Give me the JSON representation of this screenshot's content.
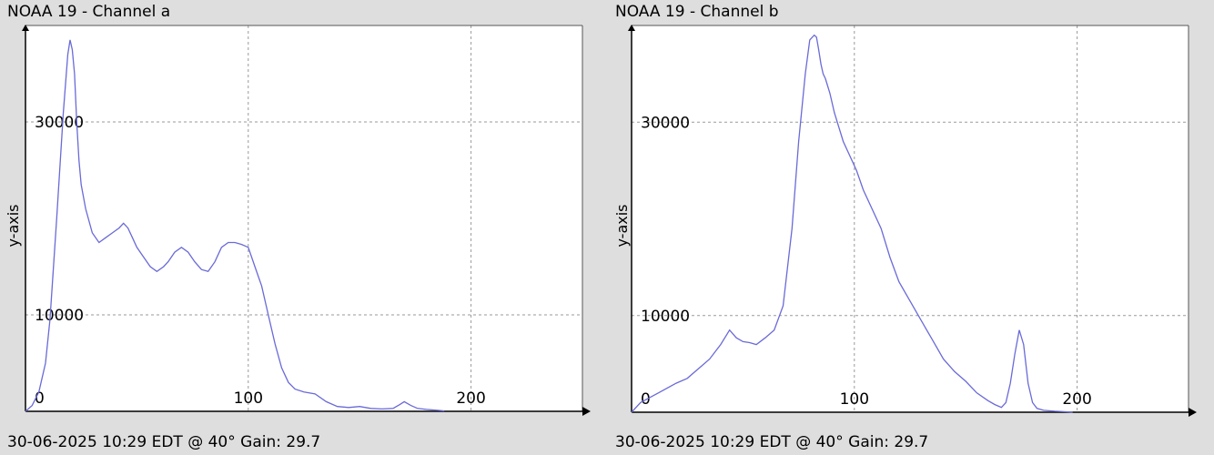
{
  "charts": [
    {
      "title": "NOAA 19 - Channel a",
      "footer": "30-06-2025 10:29 EDT @ 40° Gain: 29.7",
      "ylabel": "y-axis"
    },
    {
      "title": "NOAA 19 - Channel b",
      "footer": "30-06-2025 10:29 EDT @ 40° Gain: 29.7",
      "ylabel": "y-axis"
    }
  ],
  "colors": {
    "line": "#6a6ad8",
    "grid": "#9a9a9a",
    "background": "#ffffff",
    "axis": "#000000"
  },
  "chart_data": [
    {
      "type": "line",
      "title": "NOAA 19 - Channel a",
      "ylabel": "y-axis",
      "xlim": [
        0,
        250
      ],
      "ylim": [
        0,
        40000
      ],
      "xticks": [
        0,
        100,
        200
      ],
      "yticks": [
        10000,
        30000
      ],
      "xtick_labels": [
        "0",
        "100",
        "200"
      ],
      "ytick_labels": [
        "10000",
        "30000"
      ],
      "grid": true,
      "series": [
        {
          "x": [
            0,
            3,
            6,
            9,
            11,
            14,
            17,
            19,
            20,
            21,
            22,
            23,
            24,
            25,
            27,
            30,
            33,
            36,
            39,
            42,
            44,
            46,
            48,
            50,
            53,
            56,
            59,
            62,
            64,
            67,
            70,
            73,
            76,
            79,
            82,
            85,
            88,
            91,
            94,
            97,
            100,
            103,
            106,
            109,
            112,
            115,
            118,
            121,
            125,
            130,
            135,
            140,
            145,
            150,
            155,
            160,
            165,
            168,
            170,
            173,
            176,
            180,
            185,
            188
          ],
          "y": [
            0,
            600,
            2000,
            5000,
            9500,
            20000,
            31000,
            37000,
            38500,
            37500,
            35000,
            30000,
            26000,
            23500,
            21000,
            18500,
            17500,
            18000,
            18500,
            19000,
            19500,
            19000,
            18000,
            17000,
            16000,
            15000,
            14500,
            15000,
            15500,
            16500,
            17000,
            16500,
            15500,
            14700,
            14500,
            15500,
            17000,
            17500,
            17500,
            17300,
            17000,
            15000,
            13000,
            10000,
            7000,
            4500,
            3000,
            2300,
            2000,
            1800,
            1000,
            500,
            400,
            500,
            300,
            250,
            300,
            700,
            1000,
            600,
            300,
            200,
            100,
            50
          ]
        }
      ]
    },
    {
      "type": "line",
      "title": "NOAA 19 - Channel b",
      "ylabel": "y-axis",
      "xlim": [
        0,
        250
      ],
      "ylim": [
        0,
        40000
      ],
      "xticks": [
        0,
        100,
        200
      ],
      "yticks": [
        10000,
        30000
      ],
      "xtick_labels": [
        "0",
        "100",
        "200"
      ],
      "ytick_labels": [
        "10000",
        "30000"
      ],
      "grid": true,
      "series": [
        {
          "x": [
            0,
            4,
            8,
            12,
            16,
            20,
            25,
            30,
            35,
            40,
            44,
            47,
            50,
            53,
            56,
            60,
            64,
            68,
            72,
            75,
            78,
            80,
            82,
            83,
            84,
            85,
            86,
            87,
            89,
            91,
            93,
            95,
            98,
            101,
            104,
            108,
            112,
            116,
            120,
            125,
            130,
            135,
            140,
            145,
            150,
            155,
            160,
            163,
            166,
            168,
            170,
            172,
            174,
            176,
            178,
            180,
            182,
            185,
            190,
            195,
            198
          ],
          "y": [
            0,
            1000,
            1500,
            2000,
            2500,
            3000,
            3500,
            4500,
            5500,
            7000,
            8500,
            7700,
            7300,
            7200,
            7000,
            7700,
            8500,
            11000,
            19000,
            28000,
            35000,
            38500,
            39000,
            38800,
            37500,
            36000,
            35000,
            34500,
            33000,
            31000,
            29500,
            28000,
            26500,
            25000,
            23000,
            21000,
            19000,
            16000,
            13500,
            11500,
            9500,
            7500,
            5500,
            4200,
            3200,
            2000,
            1200,
            800,
            500,
            1000,
            3000,
            6000,
            8500,
            7000,
            3000,
            1000,
            400,
            200,
            100,
            50,
            0
          ]
        }
      ]
    }
  ]
}
